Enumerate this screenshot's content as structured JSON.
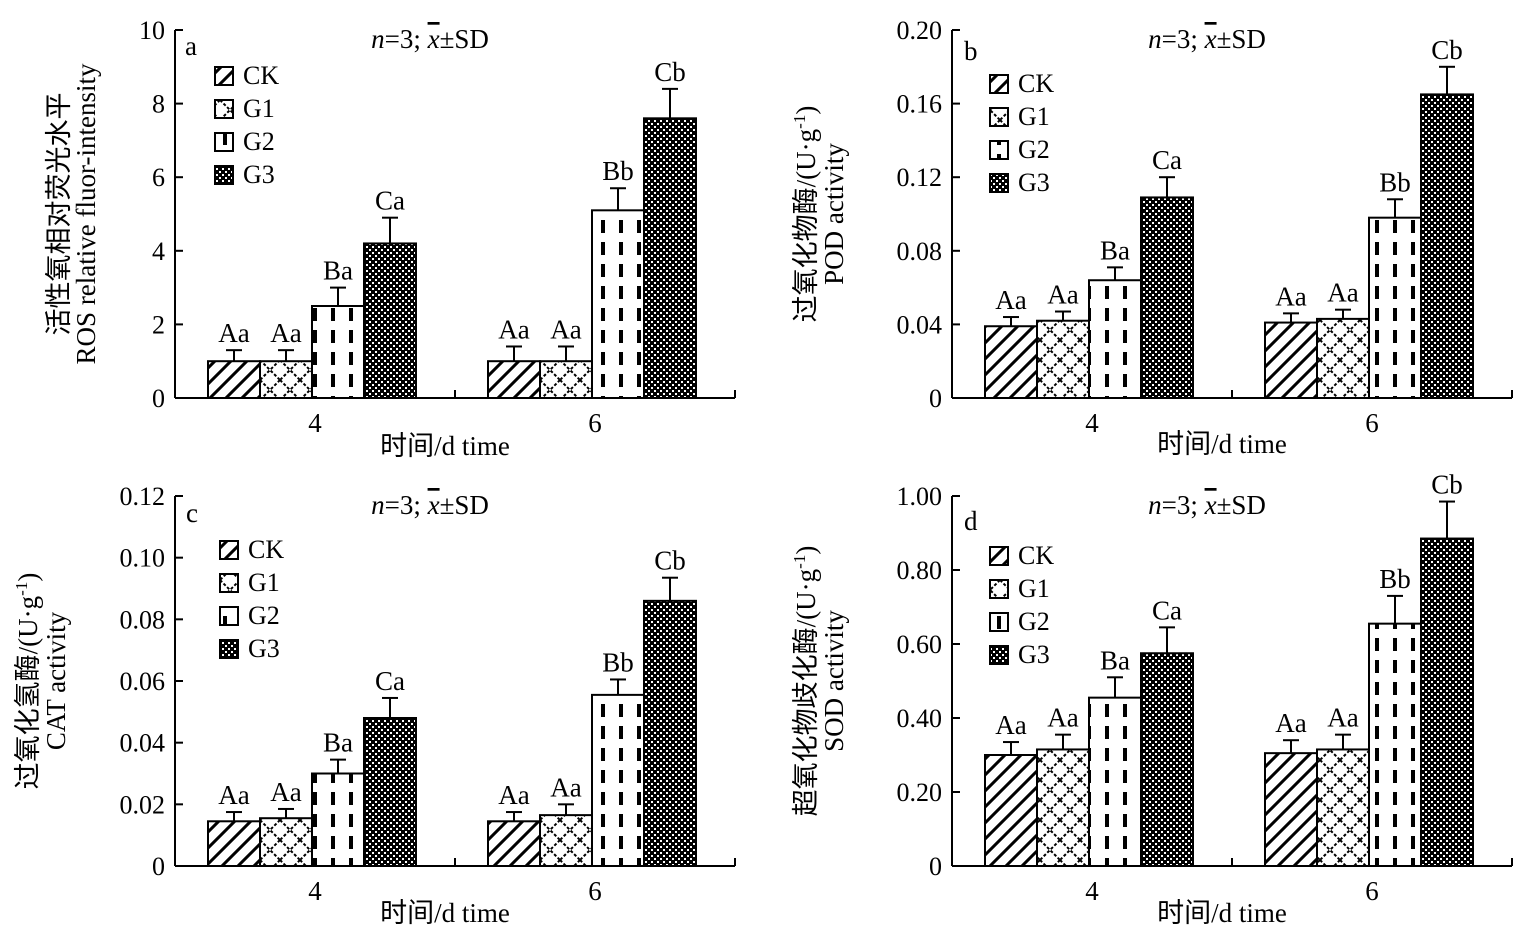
{
  "legend_entries": [
    "CK",
    "G1",
    "G2",
    "G3"
  ],
  "chart_data": [
    {
      "type": "bar",
      "panel_label": "a",
      "annotation_n": "n",
      "annotation_rest": "=3; ",
      "annotation_xbar": "x",
      "annotation_sd": "±SD",
      "ylabel_cn": "活性氧相对荧光水平",
      "ylabel_en": "ROS relative fluor-intensity",
      "xlabel": "时间/d time",
      "categories": [
        "4",
        "6"
      ],
      "ylim": [
        0,
        10
      ],
      "yticks": [
        "0",
        "2",
        "4",
        "6",
        "8",
        "10"
      ],
      "yticks_values": [
        0,
        2,
        4,
        6,
        8,
        10
      ],
      "legend_position": "top-left",
      "series": [
        {
          "name": "CK",
          "values": [
            1.0,
            1.0
          ],
          "errors": [
            0.3,
            0.4
          ],
          "labels": [
            "Aa",
            "Aa"
          ]
        },
        {
          "name": "G1",
          "values": [
            1.0,
            1.0
          ],
          "errors": [
            0.3,
            0.4
          ],
          "labels": [
            "Aa",
            "Aa"
          ]
        },
        {
          "name": "G2",
          "values": [
            2.5,
            5.1
          ],
          "errors": [
            0.5,
            0.6
          ],
          "labels": [
            "Ba",
            "Bb"
          ]
        },
        {
          "name": "G3",
          "values": [
            4.2,
            7.6
          ],
          "errors": [
            0.7,
            0.8
          ],
          "labels": [
            "Ca",
            "Cb"
          ]
        }
      ]
    },
    {
      "type": "bar",
      "panel_label": "b",
      "annotation_n": "n",
      "annotation_rest": "=3; ",
      "annotation_xbar": "x",
      "annotation_sd": "±SD",
      "ylabel_cn": "过氧化物酶/(U·g",
      "ylabel_sup": "-1",
      "ylabel_close": ")",
      "ylabel_en": "POD activity",
      "xlabel": "时间/d time",
      "categories": [
        "4",
        "6"
      ],
      "ylim": [
        0,
        0.2
      ],
      "yticks": [
        "0",
        "0.04",
        "0.08",
        "0.12",
        "0.16",
        "0.20"
      ],
      "yticks_values": [
        0,
        0.04,
        0.08,
        0.12,
        0.16,
        0.2
      ],
      "legend_position": "top-left",
      "series": [
        {
          "name": "CK",
          "values": [
            0.039,
            0.041
          ],
          "errors": [
            0.005,
            0.005
          ],
          "labels": [
            "Aa",
            "Aa"
          ]
        },
        {
          "name": "G1",
          "values": [
            0.042,
            0.043
          ],
          "errors": [
            0.005,
            0.005
          ],
          "labels": [
            "Aa",
            "Aa"
          ]
        },
        {
          "name": "G2",
          "values": [
            0.064,
            0.098
          ],
          "errors": [
            0.007,
            0.01
          ],
          "labels": [
            "Ba",
            "Bb"
          ]
        },
        {
          "name": "G3",
          "values": [
            0.109,
            0.165
          ],
          "errors": [
            0.011,
            0.015
          ],
          "labels": [
            "Ca",
            "Cb"
          ]
        }
      ]
    },
    {
      "type": "bar",
      "panel_label": "c",
      "annotation_n": "n",
      "annotation_rest": "=3; ",
      "annotation_xbar": "x",
      "annotation_sd": "±SD",
      "ylabel_cn": "过氧化氢酶/(U·g",
      "ylabel_sup": "-1",
      "ylabel_close": ")",
      "ylabel_en": "CAT activity",
      "xlabel": "时间/d time",
      "categories": [
        "4",
        "6"
      ],
      "ylim": [
        0,
        0.12
      ],
      "yticks": [
        "0",
        "0.02",
        "0.04",
        "0.06",
        "0.08",
        "0.10",
        "0.12"
      ],
      "yticks_values": [
        0,
        0.02,
        0.04,
        0.06,
        0.08,
        0.1,
        0.12
      ],
      "legend_position": "top-left",
      "series": [
        {
          "name": "CK",
          "values": [
            0.0145,
            0.0145
          ],
          "errors": [
            0.003,
            0.003
          ],
          "labels": [
            "Aa",
            "Aa"
          ]
        },
        {
          "name": "G1",
          "values": [
            0.0155,
            0.0165
          ],
          "errors": [
            0.003,
            0.0035
          ],
          "labels": [
            "Aa",
            "Aa"
          ]
        },
        {
          "name": "G2",
          "values": [
            0.03,
            0.0555
          ],
          "errors": [
            0.0045,
            0.005
          ],
          "labels": [
            "Ba",
            "Bb"
          ]
        },
        {
          "name": "G3",
          "values": [
            0.048,
            0.086
          ],
          "errors": [
            0.0065,
            0.0075
          ],
          "labels": [
            "Ca",
            "Cb"
          ]
        }
      ]
    },
    {
      "type": "bar",
      "panel_label": "d",
      "annotation_n": "n",
      "annotation_rest": "=3; ",
      "annotation_xbar": "x",
      "annotation_sd": "±SD",
      "ylabel_cn": "超氧化物歧化酶/(U·g",
      "ylabel_sup": "-1",
      "ylabel_close": ")",
      "ylabel_en": "SOD activity",
      "xlabel": "时间/d time",
      "categories": [
        "4",
        "6"
      ],
      "ylim": [
        0,
        1.0
      ],
      "yticks": [
        "0",
        "0.20",
        "0.40",
        "0.60",
        "0.80",
        "1.00"
      ],
      "yticks_values": [
        0,
        0.2,
        0.4,
        0.6,
        0.8,
        1.0
      ],
      "legend_position": "top-left",
      "series": [
        {
          "name": "CK",
          "values": [
            0.3,
            0.305
          ],
          "errors": [
            0.035,
            0.035
          ],
          "labels": [
            "Aa",
            "Aa"
          ]
        },
        {
          "name": "G1",
          "values": [
            0.315,
            0.315
          ],
          "errors": [
            0.04,
            0.04
          ],
          "labels": [
            "Aa",
            "Aa"
          ]
        },
        {
          "name": "G2",
          "values": [
            0.455,
            0.655
          ],
          "errors": [
            0.055,
            0.075
          ],
          "labels": [
            "Ba",
            "Bb"
          ]
        },
        {
          "name": "G3",
          "values": [
            0.575,
            0.885
          ],
          "errors": [
            0.07,
            0.1
          ],
          "labels": [
            "Ca",
            "Cb"
          ]
        }
      ]
    }
  ]
}
